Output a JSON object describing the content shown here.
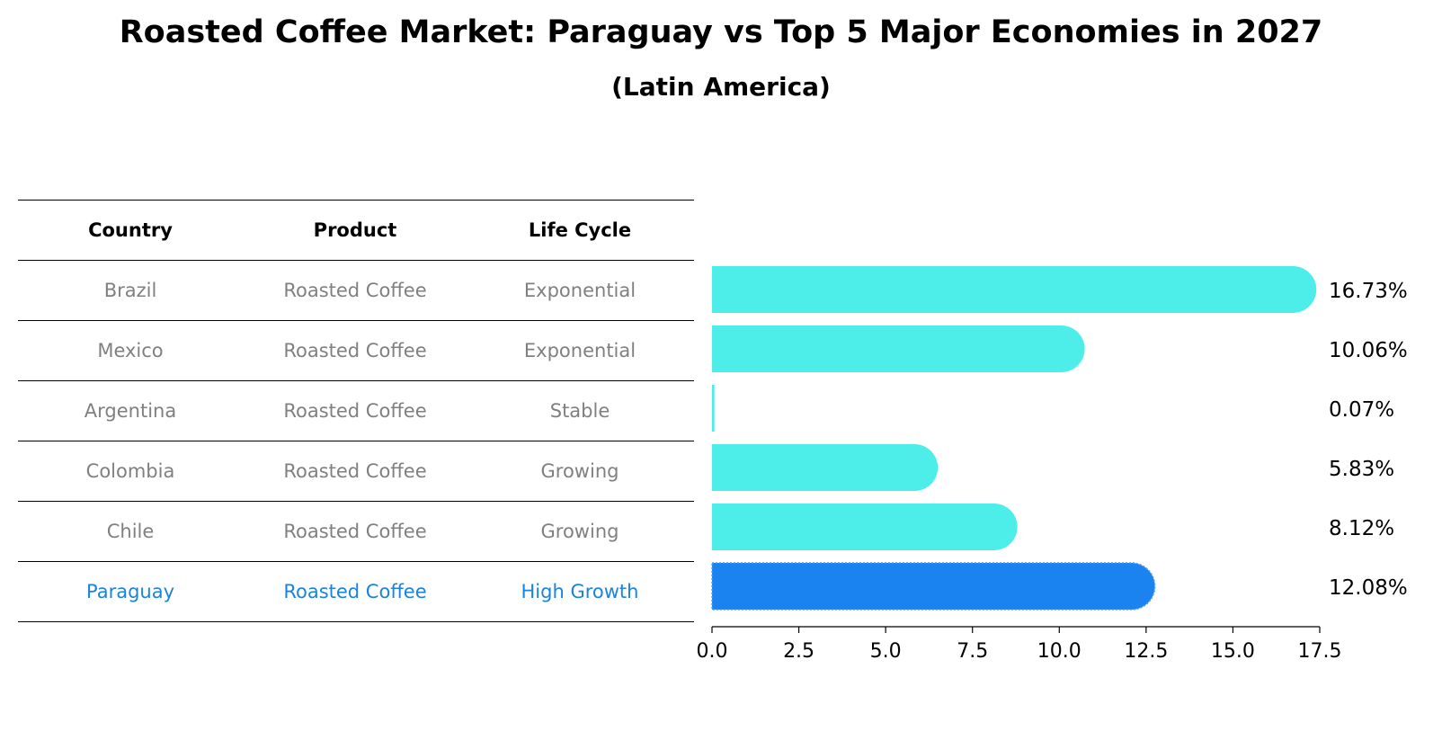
{
  "title": "Roasted Coffee Market: Paraguay vs Top 5 Major Economies in 2027",
  "subtitle": "(Latin America)",
  "table": {
    "headers": [
      "Country",
      "Product",
      "Life Cycle"
    ],
    "rows": [
      [
        "Brazil",
        "Roasted Coffee",
        "Exponential"
      ],
      [
        "Mexico",
        "Roasted Coffee",
        "Exponential"
      ],
      [
        "Argentina",
        "Roasted Coffee",
        "Stable"
      ],
      [
        "Colombia",
        "Roasted Coffee",
        "Growing"
      ],
      [
        "Chile",
        "Roasted Coffee",
        "Growing"
      ],
      [
        "Paraguay",
        "Roasted Coffee",
        "High Growth"
      ]
    ],
    "highlight_row": 5
  },
  "colors": {
    "bar": "#4deeea",
    "highlight": "#1a83f0",
    "text_gray": "#808080",
    "text_highlight": "#1a83e0"
  },
  "chart_data": {
    "type": "bar",
    "orientation": "horizontal",
    "categories": [
      "Brazil",
      "Mexico",
      "Argentina",
      "Colombia",
      "Chile",
      "Paraguay"
    ],
    "values": [
      16.73,
      10.06,
      0.07,
      5.83,
      8.12,
      12.08
    ],
    "labels": [
      "16.73%",
      "10.06%",
      "0.07%",
      "5.83%",
      "8.12%",
      "12.08%"
    ],
    "xlim": [
      0,
      17.5
    ],
    "xticks": [
      "0.0",
      "2.5",
      "5.0",
      "7.5",
      "10.0",
      "12.5",
      "15.0",
      "17.5"
    ],
    "highlight": "Paraguay",
    "title": "Roasted Coffee Market: Paraguay vs Top 5 Major Economies in 2027",
    "subtitle": "(Latin America)",
    "xlabel": "",
    "ylabel": ""
  }
}
